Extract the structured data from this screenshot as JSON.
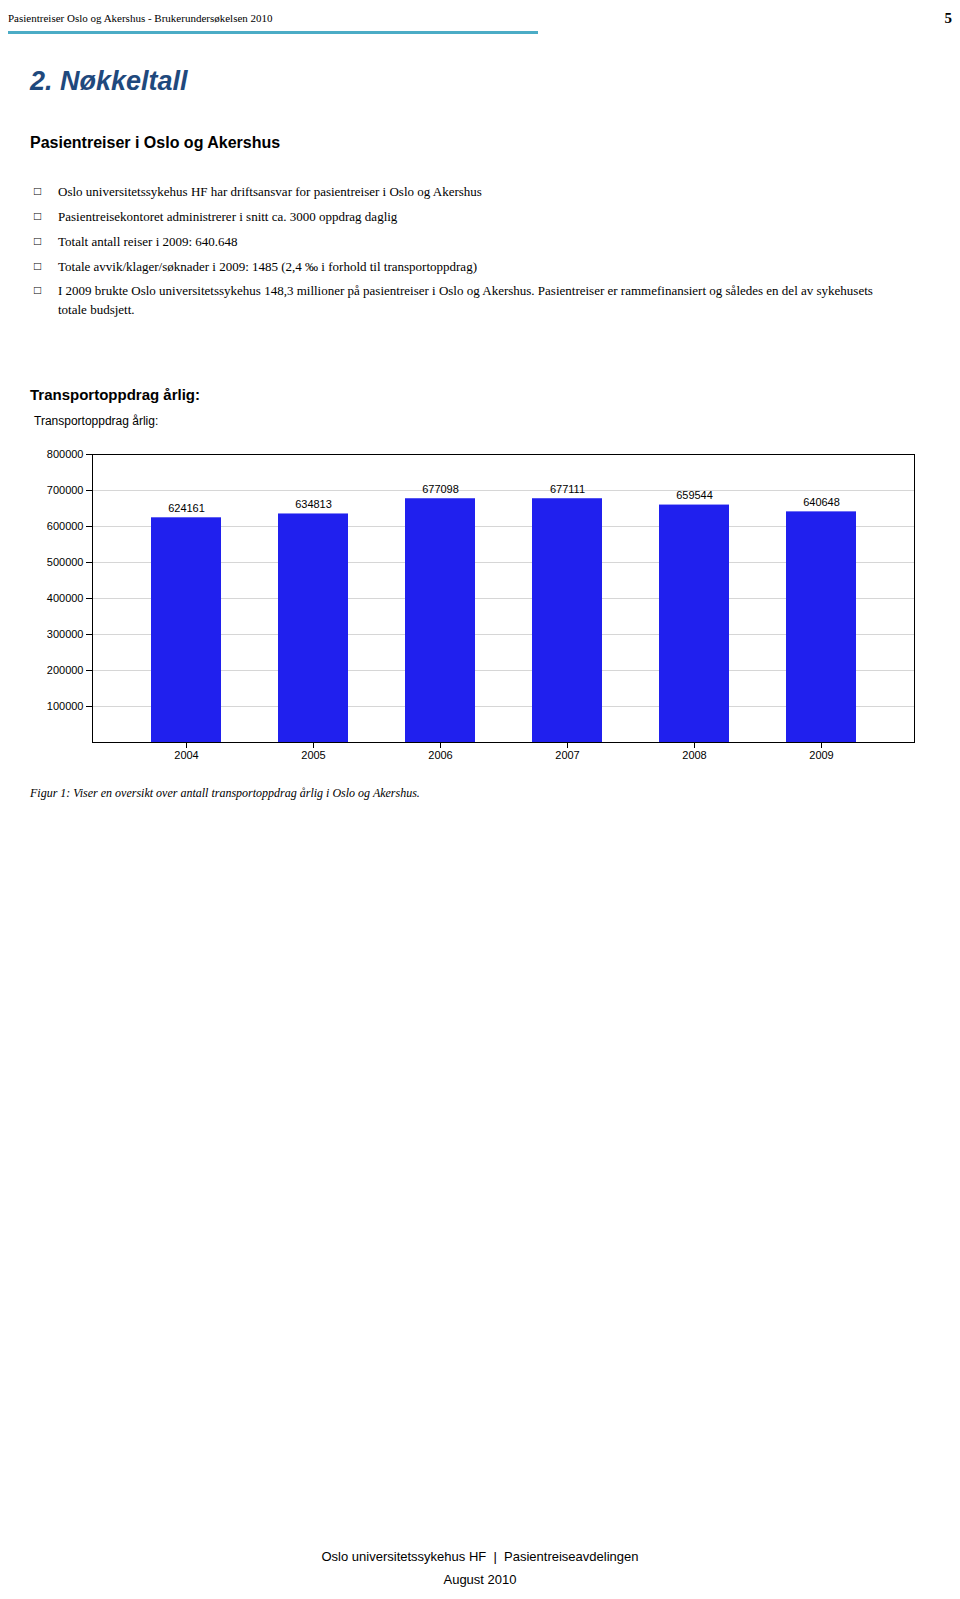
{
  "page_title": "Pasientreiser Oslo og Akershus - Brukerundersøkelsen 2010",
  "page_number": "5",
  "header_line_color": "#4BACC6",
  "section_title": "2. Nøkkeltall",
  "section_title_color": "#1F497D",
  "subsection_title": "Pasientreiser i Oslo og Akershus",
  "bullet_points": [
    "Oslo universitetssykehus HF har driftsansvar for pasientreiser i Oslo og Akershus",
    "Pasientreisekontoret administrerer i snitt ca. 3000 oppdrag daglig",
    "Totalt antall reiser i 2009: 640.648",
    "Totale avvik/klager/søknader i 2009: 1485 (2,4 ‰ i forhold til transportoppdrag)",
    "I 2009 brukte Oslo universitetssykehus 148,3 millioner på pasientreiser i Oslo og Akershus. Pasientreiser er rammefinansiert og således en del av sykehusets totale budsjett."
  ],
  "above_chart_title": "Transportoppdrag årlig:",
  "figure_caption": "Figur 1: Viser en oversikt over antall transportoppdrag årlig i Oslo og Akershus.",
  "footer_line1": "Oslo universitetssykehus HF  |  Pasientreiseavdelingen",
  "footer_line2": "August 2010",
  "chart_data": {
    "type": "bar",
    "title": "Transportoppdrag årlig:",
    "categories": [
      "2004",
      "2005",
      "2006",
      "2007",
      "2008",
      "2009"
    ],
    "values": [
      624161,
      634813,
      677098,
      677111,
      659544,
      640648
    ],
    "color": "#2020EE",
    "ylim": [
      0,
      800000
    ],
    "yticks": [
      100000,
      200000,
      300000,
      400000,
      500000,
      600000,
      700000,
      800000
    ],
    "grid": true,
    "data_labels": true
  }
}
